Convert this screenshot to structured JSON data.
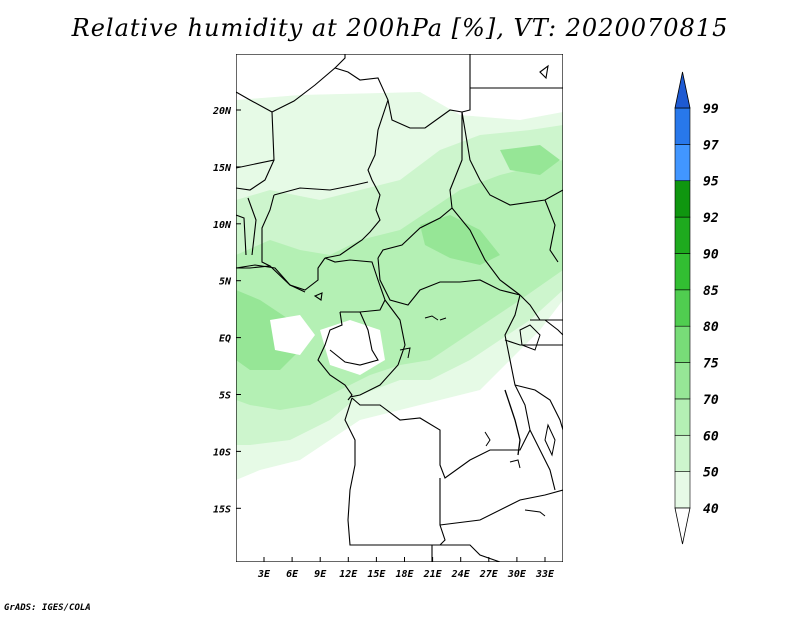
{
  "title": "Relative humidity at 200hPa [%], VT: 2020070815",
  "credit": "GrADS: IGES/COLA",
  "map": {
    "lon_ticks": [
      "3E",
      "6E",
      "9E",
      "12E",
      "15E",
      "18E",
      "21E",
      "24E",
      "27E",
      "30E",
      "33E"
    ],
    "lat_ticks": [
      "20N",
      "15N",
      "10N",
      "5N",
      "EQ",
      "5S",
      "10S",
      "15S"
    ]
  },
  "colorbar": {
    "levels": [
      "40",
      "50",
      "60",
      "70",
      "75",
      "80",
      "85",
      "90",
      "92",
      "95",
      "97",
      "99"
    ],
    "colors": {
      "below_40": "#ffffff",
      "40_50": "#e6fae6",
      "50_60": "#cdf5cd",
      "60_70": "#b4f0b4",
      "70_75": "#96e696",
      "75_80": "#78dc78",
      "80_85": "#50cd50",
      "85_90": "#32be32",
      "90_92": "#1eaa1e",
      "92_95": "#0f960f",
      "95_97": "#4196ff",
      "97_99": "#2878eb",
      "above_99": "#1e5ad2"
    }
  }
}
